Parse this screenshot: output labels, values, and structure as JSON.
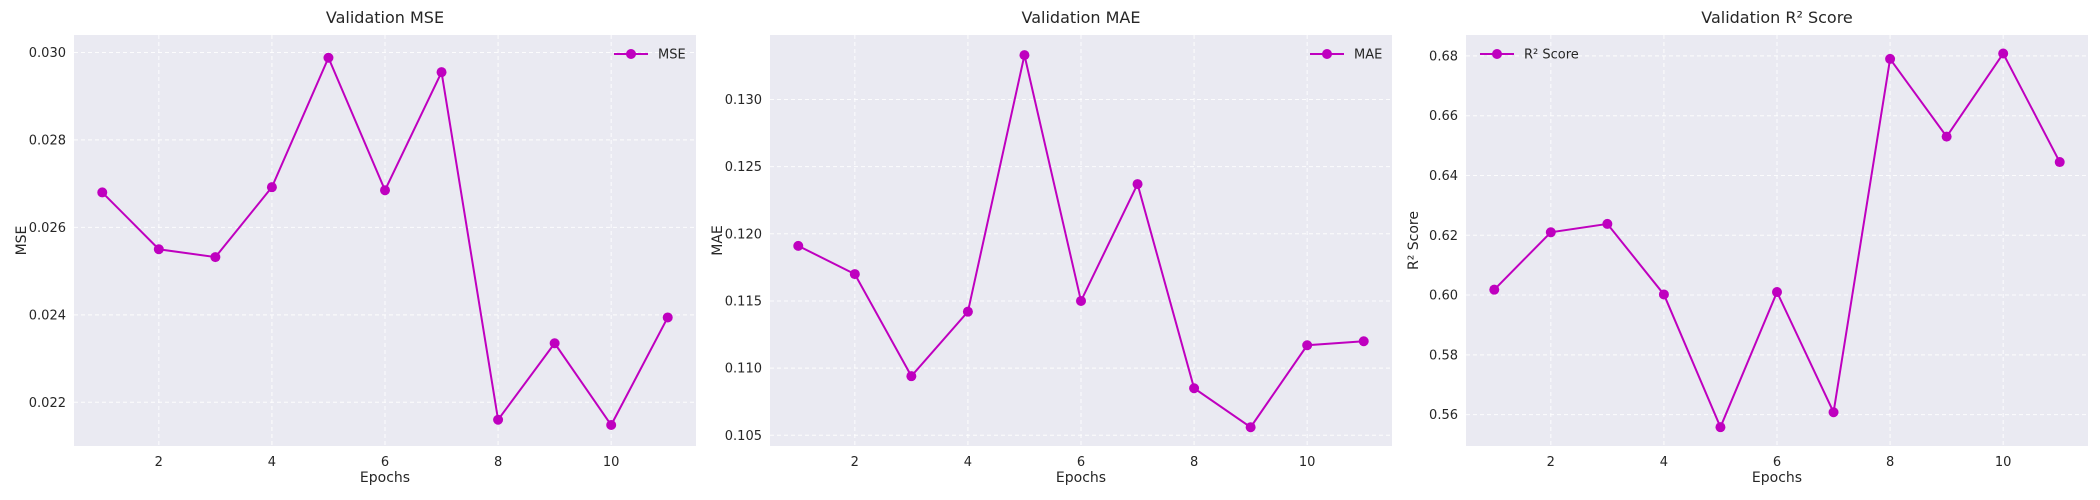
{
  "chart_data": [
    {
      "type": "line",
      "title": "Validation MSE",
      "xlabel": "Epochs",
      "ylabel": "MSE",
      "x": [
        1,
        2,
        3,
        4,
        5,
        6,
        7,
        8,
        9,
        10,
        11
      ],
      "series": [
        {
          "name": "MSE",
          "color": "#bf00bf",
          "values": [
            0.0268,
            0.0255,
            0.02532,
            0.02692,
            0.02988,
            0.02685,
            0.02955,
            0.0216,
            0.02335,
            0.02148,
            0.02394
          ]
        }
      ],
      "xlim": [
        0.5,
        11.5
      ],
      "ylim": [
        0.021,
        0.0304
      ],
      "xticks": [
        2,
        4,
        6,
        8,
        10
      ],
      "xtick_labels": [
        "2",
        "4",
        "6",
        "8",
        "10"
      ],
      "yticks": [
        0.022,
        0.024,
        0.026,
        0.028,
        0.03
      ],
      "ytick_labels": [
        "0.022",
        "0.024",
        "0.026",
        "0.028",
        "0.030"
      ],
      "grid": true,
      "legend": "upper right"
    },
    {
      "type": "line",
      "title": "Validation MAE",
      "xlabel": "Epochs",
      "ylabel": "MAE",
      "x": [
        1,
        2,
        3,
        4,
        5,
        6,
        7,
        8,
        9,
        10,
        11
      ],
      "series": [
        {
          "name": "MAE",
          "color": "#bf00bf",
          "values": [
            0.1191,
            0.117,
            0.1094,
            0.1142,
            0.1333,
            0.115,
            0.1237,
            0.1085,
            0.1056,
            0.1117,
            0.112
          ]
        }
      ],
      "xlim": [
        0.5,
        11.5
      ],
      "ylim": [
        0.1042,
        0.1348
      ],
      "xticks": [
        2,
        4,
        6,
        8,
        10
      ],
      "xtick_labels": [
        "2",
        "4",
        "6",
        "8",
        "10"
      ],
      "yticks": [
        0.105,
        0.11,
        0.115,
        0.12,
        0.125,
        0.13
      ],
      "ytick_labels": [
        "0.105",
        "0.110",
        "0.115",
        "0.120",
        "0.125",
        "0.130"
      ],
      "grid": true,
      "legend": "upper right"
    },
    {
      "type": "line",
      "title": "Validation R² Score",
      "xlabel": "Epochs",
      "ylabel": "R² Score",
      "x": [
        1,
        2,
        3,
        4,
        5,
        6,
        7,
        8,
        9,
        10,
        11
      ],
      "series": [
        {
          "name": "R² Score",
          "color": "#bf00bf",
          "values": [
            0.6018,
            0.621,
            0.6238,
            0.6002,
            0.5558,
            0.601,
            0.5608,
            0.679,
            0.653,
            0.6808,
            0.6445
          ]
        }
      ],
      "xlim": [
        0.5,
        11.5
      ],
      "ylim": [
        0.5495,
        0.687
      ],
      "xticks": [
        2,
        4,
        6,
        8,
        10
      ],
      "xtick_labels": [
        "2",
        "4",
        "6",
        "8",
        "10"
      ],
      "yticks": [
        0.56,
        0.58,
        0.6,
        0.62,
        0.64,
        0.66,
        0.68
      ],
      "ytick_labels": [
        "0.56",
        "0.58",
        "0.60",
        "0.62",
        "0.64",
        "0.66",
        "0.68"
      ],
      "grid": true,
      "legend": "upper left"
    }
  ]
}
